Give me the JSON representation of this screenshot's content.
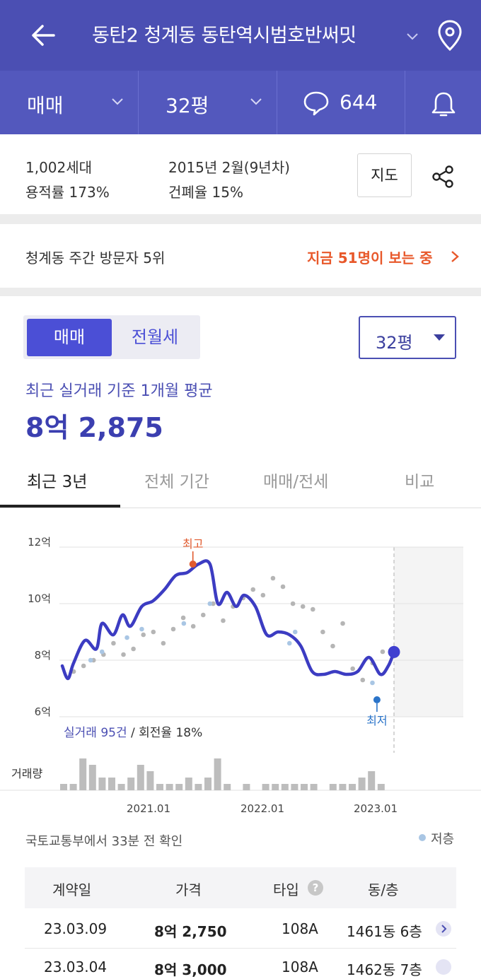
{
  "header": {
    "title": "동탄2 청계동 동탄역시범호반써밋",
    "deal_type": "매매",
    "size": "32평",
    "comment_count": "644"
  },
  "info": {
    "households": "1,002세대",
    "far": "용적률 173%",
    "built": "2015년 2월(9년차)",
    "bcr": "건폐율 15%",
    "map_button": "지도"
  },
  "visitor": {
    "rank": "청계동 주간 방문자 5위",
    "viewing": "지금 51명이 보는 중"
  },
  "price": {
    "toggle": [
      "매매",
      "전월세"
    ],
    "size_select": "32평",
    "avg_label": "최근 실거래 기준 1개월 평균",
    "avg_value": "8억 2,875"
  },
  "tabs": [
    "최근 3년",
    "전체 기간",
    "매매/전세",
    "비교"
  ],
  "chart_data": {
    "type": "line",
    "y_unit": "억",
    "ylim": [
      6,
      12
    ],
    "y_ticks": [
      "12억",
      "10억",
      "8억",
      "6억"
    ],
    "x_ticks": [
      "2021.01",
      "2022.01",
      "2023.01"
    ],
    "high_label": "최고",
    "low_label": "최저",
    "summary_count_label": "실거래 95건",
    "summary_turnover_label": " / 회전율 18%",
    "volume_label": "거래량",
    "series": [
      {
        "x": [
          2020.25,
          2020.3,
          2020.35,
          2020.45,
          2020.55,
          2020.6,
          2020.7,
          2020.78,
          2020.85,
          2020.95,
          2021.05,
          2021.15,
          2021.25,
          2021.35,
          2021.45,
          2021.55,
          2021.62,
          2021.7,
          2021.78,
          2021.85,
          2021.95,
          2022.05,
          2022.15,
          2022.25,
          2022.35,
          2022.45,
          2022.55,
          2022.65,
          2022.75,
          2022.85,
          2022.95,
          2023.05,
          2023.12,
          2023.17
        ],
        "y": [
          7.8,
          7.35,
          7.9,
          8.7,
          8.4,
          9.3,
          8.9,
          9.6,
          9.2,
          9.9,
          10.1,
          10.5,
          11.0,
          11.1,
          11.4,
          11.4,
          10.0,
          10.4,
          9.9,
          10.3,
          9.9,
          8.9,
          9.0,
          8.9,
          8.5,
          7.6,
          7.5,
          7.6,
          7.5,
          7.6,
          8.1,
          7.5,
          7.8,
          8.29
        ]
      }
    ],
    "transactions_recent": [
      7.6,
      7.8,
      8.0,
      8.2,
      8.6,
      8.2,
      8.4,
      8.9,
      9.0,
      8.6,
      9.1,
      9.5,
      9.2,
      9.6,
      10.0,
      9.4,
      9.9,
      10.2,
      10.5,
      10.3,
      10.9,
      10.6,
      10.0,
      9.9,
      9.8,
      9.0,
      8.5,
      9.3,
      7.7,
      7.3,
      7.9,
      8.3
    ],
    "transactions_low_floor": [
      8.0,
      8.3,
      8.8,
      9.1,
      9.3,
      10.0,
      8.6,
      9.0,
      7.2
    ],
    "volume": [
      1,
      1,
      5,
      4,
      2,
      2,
      1,
      2,
      4,
      3,
      1,
      1,
      1,
      2,
      1,
      2,
      5,
      1,
      0,
      1,
      0,
      1,
      1,
      1,
      1,
      1,
      1,
      0,
      1,
      1,
      1,
      2,
      3,
      1
    ]
  },
  "source": "국토교통부에서 33분 전 확인",
  "legend": "저층",
  "table": {
    "headers": [
      "계약일",
      "가격",
      "타입",
      "동/층"
    ],
    "rows": [
      {
        "date": "23.03.09",
        "price": "8억 2,750",
        "type": "108A",
        "dong": "1461동 6층"
      },
      {
        "date": "23.03.04",
        "price": "8억 3,000",
        "type": "108A",
        "dong": "1462동 7층"
      }
    ]
  },
  "colors": {
    "header_bg": "#4b4fb3",
    "accent": "#4b4fd6",
    "line": "#3c3cc2",
    "high": "#e05a2e",
    "low": "#2b74c9"
  }
}
